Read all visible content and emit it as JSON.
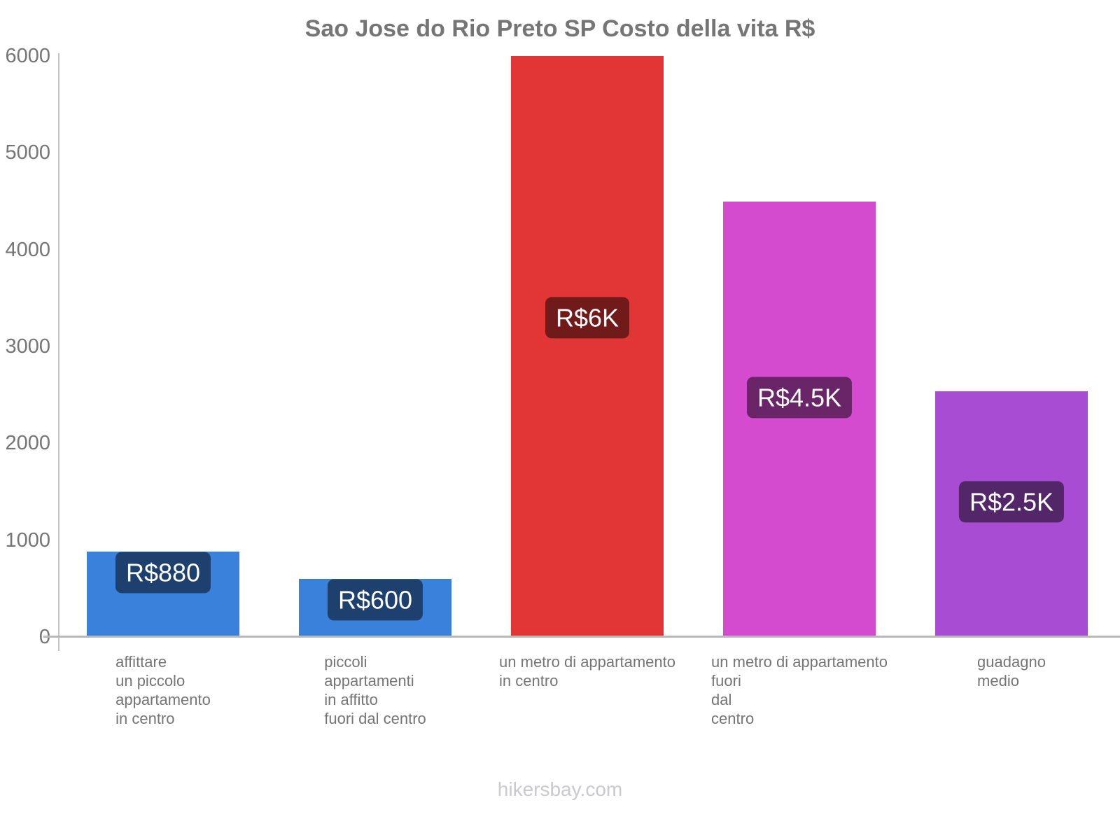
{
  "chart_data": {
    "type": "bar",
    "title": "Sao Jose do Rio Preto SP Costo della vita R$",
    "categories": [
      [
        "affittare",
        "un piccolo",
        "appartamento",
        "in centro"
      ],
      [
        "piccoli",
        "appartamenti",
        "in affitto",
        "fuori dal centro"
      ],
      [
        "un metro di appartamento",
        "in centro"
      ],
      [
        "un metro di appartamento",
        "fuori",
        "dal",
        "centro"
      ],
      [
        "guadagno",
        "medio"
      ]
    ],
    "values": [
      880,
      600,
      6000,
      4500,
      2540
    ],
    "bar_labels": [
      "R$880",
      "R$600",
      "R$6K",
      "R$4.5K",
      "R$2.5K"
    ],
    "bar_colors": [
      "#3a81dc",
      "#3a81dc",
      "#e23535",
      "#d44bd0",
      "#a74cd3"
    ],
    "badge_bg": "rgba(0,0,0,0.5)",
    "badge_text_color": "#ffffff",
    "yticks": [
      0,
      1000,
      2000,
      3000,
      4000,
      5000,
      6000
    ],
    "ylim": [
      0,
      6000
    ],
    "xlabel": "",
    "ylabel": "",
    "grid": false,
    "legend": false,
    "text_color": "#757575",
    "axis_color": "#bdbdbd",
    "footer": "hikersbay.com"
  }
}
